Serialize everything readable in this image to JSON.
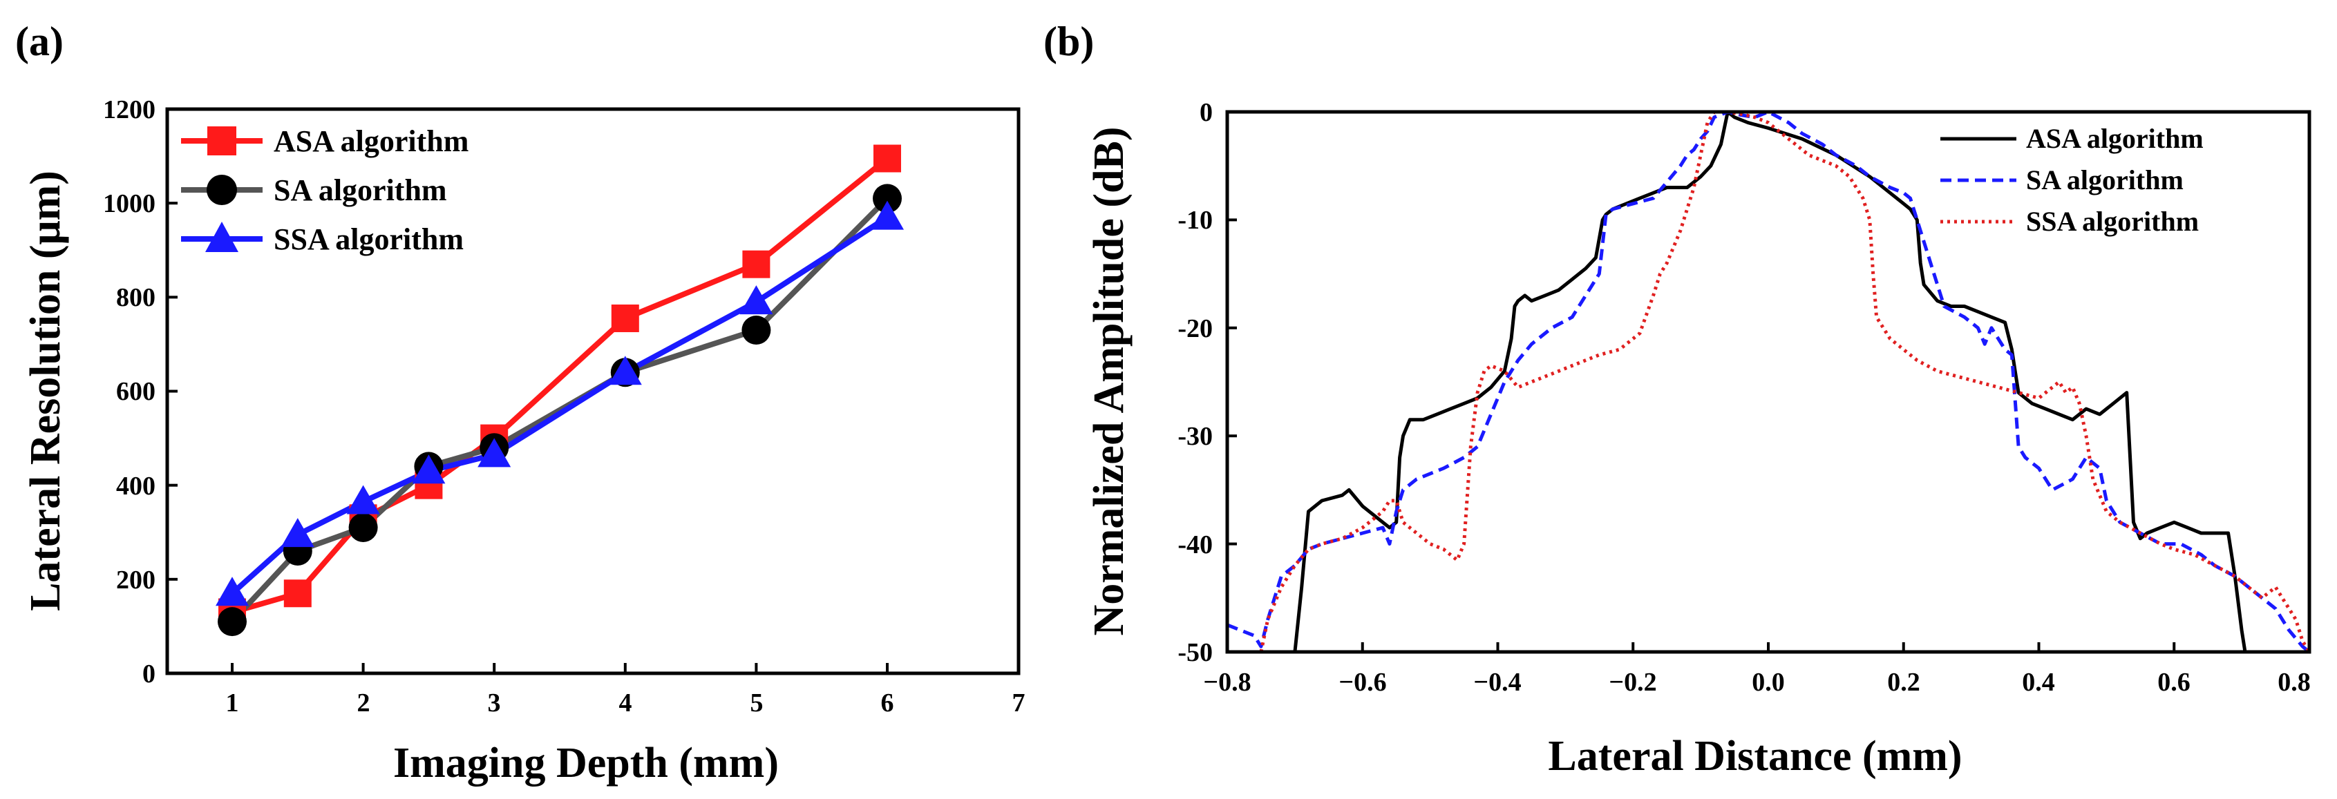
{
  "chart_data": [
    {
      "type": "line",
      "panel_label": "(a)",
      "xlabel": "Imaging Depth (mm)",
      "ylabel": "Lateral Resolution (μm)",
      "xlim": [
        0.5,
        7
      ],
      "ylim": [
        0,
        1200
      ],
      "x_ticks": [
        "1",
        "2",
        "3",
        "4",
        "5",
        "6",
        "7"
      ],
      "y_ticks": [
        "0",
        "200",
        "400",
        "600",
        "800",
        "1000",
        "1200"
      ],
      "legend_position": "top-left",
      "x": [
        1,
        1.5,
        2,
        2.5,
        3,
        4,
        5,
        6
      ],
      "series": [
        {
          "name": "ASA algorithm",
          "marker": "square",
          "color": "#ff1a1a",
          "values": [
            130,
            170,
            330,
            400,
            500,
            755,
            870,
            1095
          ]
        },
        {
          "name": "SA algorithm",
          "marker": "circle",
          "color": "#555555",
          "values": [
            110,
            260,
            310,
            440,
            480,
            640,
            730,
            1010
          ]
        },
        {
          "name": "SSA algorithm",
          "marker": "triangle",
          "color": "#1a1aff",
          "values": [
            170,
            295,
            365,
            430,
            465,
            640,
            790,
            970
          ]
        }
      ]
    },
    {
      "type": "line",
      "panel_label": "(b)",
      "xlabel": "Lateral Distance (mm)",
      "ylabel": "Normalized Amplitude (dB)",
      "xlim": [
        -0.8,
        0.8
      ],
      "ylim": [
        -50,
        0
      ],
      "x_ticks": [
        "−0.8",
        "−0.6",
        "−0.4",
        "−0.2",
        "0.0",
        "0.2",
        "0.4",
        "0.6",
        "0.8"
      ],
      "y_ticks": [
        "0",
        "-10",
        "-20",
        "-30",
        "-40",
        "-50"
      ],
      "legend_position": "top-right",
      "series": [
        {
          "name": "ASA algorithm",
          "style": "solid",
          "color": "#000000",
          "x": [
            -0.7,
            -0.69,
            -0.68,
            -0.66,
            -0.63,
            -0.62,
            -0.6,
            -0.59,
            -0.57,
            -0.56,
            -0.55,
            -0.545,
            -0.54,
            -0.53,
            -0.51,
            -0.49,
            -0.47,
            -0.45,
            -0.43,
            -0.41,
            -0.39,
            -0.38,
            -0.375,
            -0.37,
            -0.36,
            -0.35,
            -0.33,
            -0.31,
            -0.29,
            -0.27,
            -0.255,
            -0.245,
            -0.24,
            -0.23,
            -0.21,
            -0.19,
            -0.17,
            -0.15,
            -0.12,
            -0.1,
            -0.085,
            -0.07,
            -0.06,
            -0.05,
            -0.03,
            0.0,
            0.05,
            0.1,
            0.15,
            0.18,
            0.2,
            0.21,
            0.22,
            0.225,
            0.23,
            0.25,
            0.27,
            0.29,
            0.31,
            0.33,
            0.35,
            0.36,
            0.365,
            0.37,
            0.39,
            0.41,
            0.43,
            0.45,
            0.47,
            0.49,
            0.51,
            0.53,
            0.535,
            0.54,
            0.55,
            0.56,
            0.58,
            0.6,
            0.62,
            0.64,
            0.66,
            0.68,
            0.69,
            0.7,
            0.705
          ],
          "y": [
            -50,
            -44,
            -37,
            -36,
            -35.5,
            -35,
            -36.5,
            -37,
            -38,
            -38.5,
            -38,
            -32,
            -30,
            -28.5,
            -28.5,
            -28,
            -27.5,
            -27,
            -26.5,
            -25.5,
            -24,
            -21,
            -18,
            -17.5,
            -17,
            -17.5,
            -17,
            -16.5,
            -15.5,
            -14.5,
            -13.5,
            -10,
            -9.5,
            -9,
            -8.5,
            -8,
            -7.5,
            -7,
            -7,
            -6,
            -5,
            -3,
            0,
            -0.5,
            -1,
            -1.5,
            -2.5,
            -4,
            -6,
            -7.5,
            -8.5,
            -9,
            -10,
            -14,
            -16,
            -17.5,
            -18,
            -18,
            -18.5,
            -19,
            -19.5,
            -22,
            -24,
            -26,
            -27,
            -27.5,
            -28,
            -28.5,
            -27.5,
            -28,
            -27,
            -26,
            -32,
            -38,
            -39.5,
            -39,
            -38.5,
            -38,
            -38.5,
            -39,
            -39,
            -39,
            -43,
            -48,
            -50
          ]
        },
        {
          "name": "SA algorithm",
          "style": "dashed",
          "color": "#1a1aff",
          "x": [
            -0.8,
            -0.76,
            -0.75,
            -0.74,
            -0.73,
            -0.72,
            -0.7,
            -0.68,
            -0.66,
            -0.63,
            -0.6,
            -0.57,
            -0.56,
            -0.55,
            -0.54,
            -0.52,
            -0.48,
            -0.45,
            -0.43,
            -0.42,
            -0.41,
            -0.39,
            -0.37,
            -0.35,
            -0.32,
            -0.29,
            -0.27,
            -0.25,
            -0.24,
            -0.23,
            -0.2,
            -0.17,
            -0.15,
            -0.13,
            -0.12,
            -0.11,
            -0.1,
            -0.09,
            -0.08,
            -0.06,
            -0.04,
            -0.02,
            0.0,
            0.03,
            0.05,
            0.08,
            0.1,
            0.13,
            0.15,
            0.18,
            0.2,
            0.21,
            0.22,
            0.24,
            0.26,
            0.29,
            0.31,
            0.32,
            0.33,
            0.35,
            0.36,
            0.37,
            0.38,
            0.4,
            0.42,
            0.45,
            0.47,
            0.49,
            0.5,
            0.52,
            0.55,
            0.58,
            0.61,
            0.64,
            0.66,
            0.69,
            0.71,
            0.73,
            0.75,
            0.77,
            0.79,
            0.8
          ],
          "y": [
            -47.5,
            -48.5,
            -49.5,
            -47,
            -45,
            -43,
            -42,
            -40.5,
            -40,
            -39.5,
            -39,
            -38.5,
            -40,
            -37,
            -35,
            -34,
            -33,
            -32,
            -31,
            -29.5,
            -28,
            -25,
            -23,
            -21.5,
            -20,
            -19,
            -17,
            -15,
            -9.5,
            -9,
            -8.5,
            -8,
            -6.5,
            -5,
            -4,
            -3.5,
            -2.5,
            -1.8,
            -0.5,
            0,
            -0.3,
            -0.5,
            0,
            -1,
            -2,
            -3,
            -4,
            -5,
            -6,
            -7,
            -7.5,
            -8,
            -10,
            -14,
            -18,
            -19,
            -20,
            -21.5,
            -20,
            -22,
            -22.5,
            -31,
            -32,
            -33,
            -35,
            -34,
            -32,
            -33,
            -36,
            -38,
            -39,
            -40,
            -40,
            -41,
            -42,
            -43,
            -44,
            -45,
            -46,
            -48,
            -49.5,
            -50
          ]
        },
        {
          "name": "SSA algorithm",
          "style": "dotted",
          "color": "#e02020",
          "x": [
            -0.75,
            -0.74,
            -0.72,
            -0.7,
            -0.68,
            -0.66,
            -0.63,
            -0.6,
            -0.57,
            -0.56,
            -0.55,
            -0.54,
            -0.52,
            -0.5,
            -0.48,
            -0.46,
            -0.45,
            -0.44,
            -0.43,
            -0.42,
            -0.41,
            -0.39,
            -0.37,
            -0.35,
            -0.33,
            -0.31,
            -0.29,
            -0.27,
            -0.25,
            -0.22,
            -0.19,
            -0.17,
            -0.16,
            -0.15,
            -0.14,
            -0.13,
            -0.11,
            -0.1,
            -0.09,
            -0.08,
            -0.07,
            -0.06,
            -0.04,
            -0.02,
            0.0,
            0.02,
            0.04,
            0.06,
            0.08,
            0.1,
            0.12,
            0.14,
            0.15,
            0.155,
            0.16,
            0.18,
            0.2,
            0.22,
            0.25,
            0.28,
            0.31,
            0.34,
            0.37,
            0.4,
            0.43,
            0.44,
            0.45,
            0.46,
            0.47,
            0.48,
            0.5,
            0.52,
            0.55,
            0.58,
            0.6,
            0.63,
            0.66,
            0.69,
            0.71,
            0.73,
            0.75,
            0.76,
            0.77,
            0.78,
            0.79,
            0.8
          ],
          "y": [
            -50,
            -47,
            -44,
            -42,
            -40.5,
            -40,
            -39.5,
            -38.5,
            -37,
            -36,
            -36,
            -38,
            -39,
            -40,
            -40.5,
            -41.5,
            -40,
            -31,
            -26,
            -24,
            -23.5,
            -24,
            -25.5,
            -25,
            -24.5,
            -24,
            -23.5,
            -23,
            -22.5,
            -22,
            -20.5,
            -17,
            -15,
            -14,
            -12.5,
            -11,
            -7,
            -4,
            -1,
            0,
            0,
            0,
            -0.2,
            -0.5,
            -1,
            -2,
            -3,
            -4,
            -4.5,
            -5,
            -6,
            -8,
            -10,
            -15,
            -19,
            -21,
            -22,
            -23,
            -24,
            -24.5,
            -25,
            -25.5,
            -26,
            -26.5,
            -25,
            -26,
            -25.5,
            -27,
            -30,
            -34,
            -37,
            -38,
            -39,
            -40,
            -40.5,
            -41,
            -42,
            -43,
            -44,
            -45,
            -44,
            -45,
            -46,
            -47,
            -49,
            -50
          ]
        }
      ]
    }
  ]
}
